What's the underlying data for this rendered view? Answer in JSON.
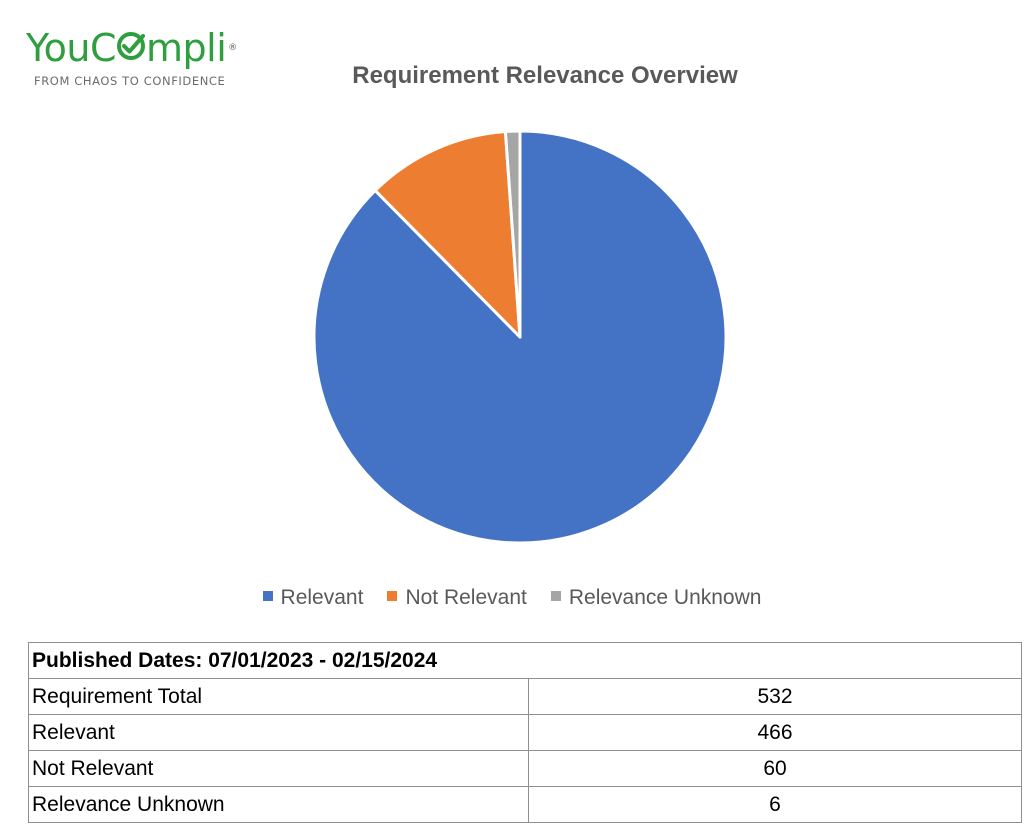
{
  "logo": {
    "brand_prefix": "YouC",
    "brand_suffix": "mpli",
    "registered": "®",
    "tagline": "FROM CHAOS TO CONFIDENCE",
    "color": "#2e9e3e"
  },
  "chart_data": {
    "type": "pie",
    "title": "Requirement Relevance Overview",
    "categories": [
      "Relevant",
      "Not Relevant",
      "Relevance Unknown"
    ],
    "values": [
      466,
      60,
      6
    ],
    "colors": [
      "#4472c4",
      "#ed7d31",
      "#a5a5a5"
    ],
    "legend": "bottom"
  },
  "table": {
    "header": "Published Dates: 07/01/2023 - 02/15/2024",
    "rows": [
      {
        "label": "Requirement Total",
        "value": "532"
      },
      {
        "label": "Relevant",
        "value": "466"
      },
      {
        "label": "Not Relevant",
        "value": "60"
      },
      {
        "label": "Relevance Unknown",
        "value": "6"
      }
    ]
  }
}
